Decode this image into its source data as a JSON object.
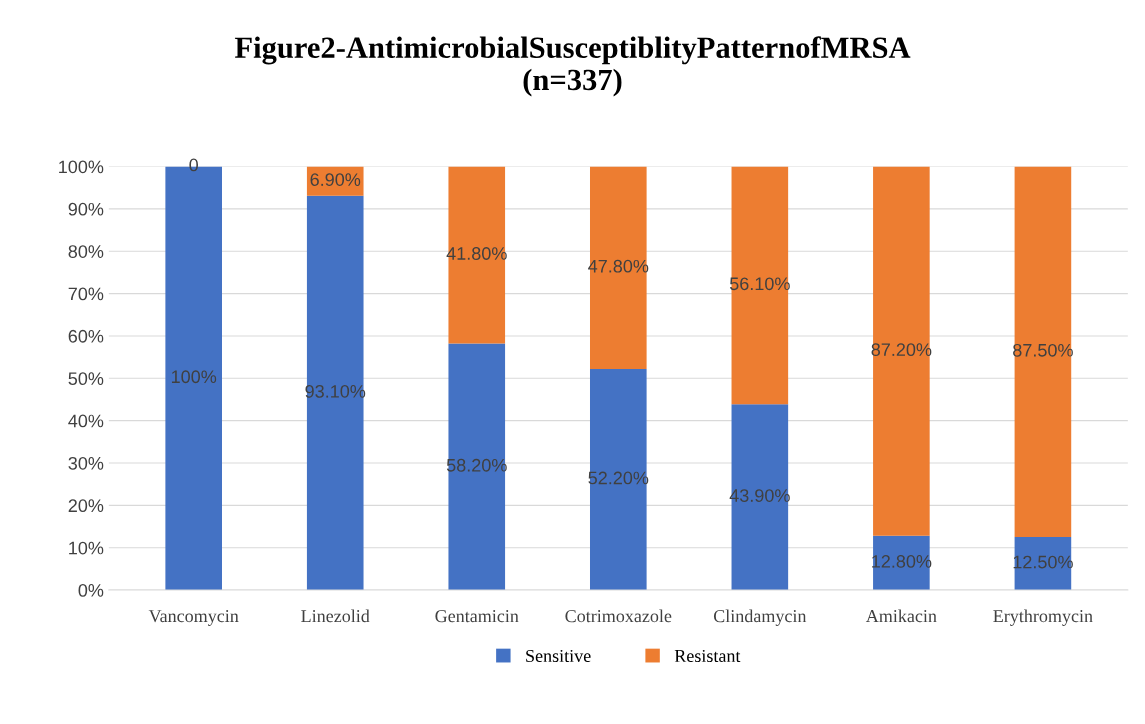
{
  "chart_data": {
    "type": "bar",
    "stacked": true,
    "title": "Figure2-AntimicrobialSusceptiblityPatternofMRSA\n(n=337)",
    "categories": [
      "Vancomycin",
      "Linezolid",
      "Gentamicin",
      "Cotrimoxazole",
      "Clindamycin",
      "Amikacin",
      "Erythromycin"
    ],
    "series": [
      {
        "name": "Sensitive",
        "color": "#4472c4",
        "values": [
          100,
          93.1,
          58.2,
          52.2,
          43.9,
          12.8,
          12.5
        ],
        "value_labels": [
          "100%",
          "93.10%",
          "58.20%",
          "52.20%",
          "43.90%",
          "12.80%",
          "12.50%"
        ]
      },
      {
        "name": "Resistant",
        "color": "#ed7d31",
        "values": [
          0,
          6.9,
          41.8,
          47.8,
          56.1,
          87.2,
          87.5
        ],
        "value_labels": [
          "0",
          "6.90%",
          "41.80%",
          "47.80%",
          "56.10%",
          "87.20%",
          "87.50%"
        ]
      }
    ],
    "ylim": [
      0,
      100
    ],
    "yticks": [
      {
        "value": 0,
        "label": "0%"
      },
      {
        "value": 10,
        "label": "10%"
      },
      {
        "value": 20,
        "label": "20%"
      },
      {
        "value": 30,
        "label": "30%"
      },
      {
        "value": 40,
        "label": "40%"
      },
      {
        "value": 50,
        "label": "50%"
      },
      {
        "value": 60,
        "label": "60%"
      },
      {
        "value": 70,
        "label": "70%"
      },
      {
        "value": 80,
        "label": "80%"
      },
      {
        "value": 90,
        "label": "90%"
      },
      {
        "value": 100,
        "label": "100%"
      }
    ],
    "grid": "y",
    "legend": "bottom"
  }
}
